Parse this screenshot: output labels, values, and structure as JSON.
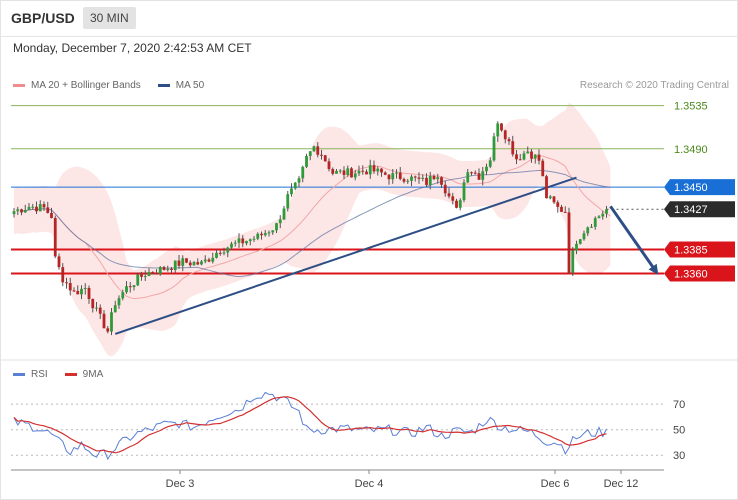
{
  "header": {
    "symbol": "GBP/USD",
    "timeframe": "30 MIN"
  },
  "datetime": "Monday, December 7, 2020 2:42:53 AM CET",
  "legend": [
    {
      "label": "MA 20 + Bollinger Bands",
      "color": "#f08c8c"
    },
    {
      "label": "MA 50",
      "color": "#2d4f86"
    }
  ],
  "credit": "Research © 2020 Trading Central",
  "colors": {
    "bull": "#2f9a3a",
    "bear": "#b62525",
    "band": "#fde6e6",
    "resistance_green": "#8ab55a",
    "support_red": "#d9141b",
    "blue_level": "#1a6fd6",
    "current": "#2b2b2b",
    "trendline": "#2d4f86"
  },
  "chart_data": [
    {
      "type": "candlestick",
      "title": "",
      "ylim": [
        1.3275,
        1.3545
      ],
      "x_tick_labels": [
        "Dec 3",
        "Dec 4",
        "Dec 6",
        "Dec 12"
      ],
      "levels": [
        {
          "value": 1.3535,
          "label": "1.3535",
          "kind": "resistance_green"
        },
        {
          "value": 1.349,
          "label": "1.3490",
          "kind": "resistance_green"
        },
        {
          "value": 1.345,
          "label": "1.3450",
          "kind": "blue_level"
        },
        {
          "value": 1.3427,
          "label": "1.3427",
          "kind": "current"
        },
        {
          "value": 1.3385,
          "label": "1.3385",
          "kind": "support_red"
        },
        {
          "value": 1.336,
          "label": "1.3360",
          "kind": "support_red"
        }
      ],
      "trendline": {
        "start": 1.3297,
        "end": 1.346
      },
      "forecast_arrow": {
        "from": 1.343,
        "to": 1.336
      },
      "anchors": [
        [
          0,
          1.3425
        ],
        [
          4,
          1.343
        ],
        [
          8,
          1.3428
        ],
        [
          10,
          1.342
        ],
        [
          11,
          1.3375
        ],
        [
          13,
          1.3355
        ],
        [
          16,
          1.334
        ],
        [
          19,
          1.3345
        ],
        [
          22,
          1.332
        ],
        [
          25,
          1.33
        ],
        [
          27,
          1.333
        ],
        [
          30,
          1.3345
        ],
        [
          35,
          1.336
        ],
        [
          40,
          1.3365
        ],
        [
          45,
          1.3372
        ],
        [
          50,
          1.337
        ],
        [
          55,
          1.3385
        ],
        [
          60,
          1.3392
        ],
        [
          65,
          1.3398
        ],
        [
          70,
          1.341
        ],
        [
          73,
          1.344
        ],
        [
          76,
          1.3455
        ],
        [
          78,
          1.348
        ],
        [
          80,
          1.3492
        ],
        [
          82,
          1.3485
        ],
        [
          85,
          1.3465
        ],
        [
          90,
          1.3465
        ],
        [
          95,
          1.3468
        ],
        [
          100,
          1.3462
        ],
        [
          105,
          1.346
        ],
        [
          110,
          1.3455
        ],
        [
          113,
          1.3465
        ],
        [
          116,
          1.344
        ],
        [
          118,
          1.3425
        ],
        [
          121,
          1.347
        ],
        [
          124,
          1.3462
        ],
        [
          127,
          1.348
        ],
        [
          129,
          1.352
        ],
        [
          131,
          1.3505
        ],
        [
          134,
          1.348
        ],
        [
          137,
          1.3488
        ],
        [
          140,
          1.3478
        ],
        [
          142,
          1.344
        ],
        [
          145,
          1.3428
        ],
        [
          147,
          1.3425
        ],
        [
          148,
          1.3365
        ],
        [
          150,
          1.3395
        ],
        [
          153,
          1.341
        ],
        [
          156,
          1.342
        ],
        [
          158,
          1.3427
        ]
      ]
    },
    {
      "type": "line",
      "title": "",
      "legend": [
        {
          "name": "RSI",
          "color": "#5b7fd6"
        },
        {
          "name": "9MA",
          "color": "#d43030"
        }
      ],
      "ylim": [
        20,
        85
      ],
      "y_tick_labels": [
        70,
        50,
        30
      ],
      "rsi_anchors": [
        [
          0,
          56
        ],
        [
          6,
          52
        ],
        [
          10,
          46
        ],
        [
          12,
          40
        ],
        [
          15,
          33
        ],
        [
          18,
          38
        ],
        [
          22,
          30
        ],
        [
          25,
          31
        ],
        [
          28,
          38
        ],
        [
          32,
          46
        ],
        [
          36,
          50
        ],
        [
          40,
          54
        ],
        [
          44,
          55
        ],
        [
          48,
          52
        ],
        [
          52,
          58
        ],
        [
          56,
          63
        ],
        [
          60,
          66
        ],
        [
          64,
          77
        ],
        [
          68,
          79
        ],
        [
          72,
          73
        ],
        [
          76,
          64
        ],
        [
          78,
          50
        ],
        [
          82,
          50
        ],
        [
          88,
          51
        ],
        [
          94,
          49
        ],
        [
          100,
          50
        ],
        [
          106,
          47
        ],
        [
          110,
          52
        ],
        [
          114,
          45
        ],
        [
          118,
          49
        ],
        [
          122,
          48
        ],
        [
          126,
          58
        ],
        [
          128,
          56
        ],
        [
          130,
          52
        ],
        [
          134,
          50
        ],
        [
          138,
          48
        ],
        [
          142,
          41
        ],
        [
          145,
          40
        ],
        [
          147,
          35
        ],
        [
          150,
          44
        ],
        [
          153,
          47
        ],
        [
          156,
          48
        ],
        [
          158,
          48
        ]
      ]
    }
  ]
}
